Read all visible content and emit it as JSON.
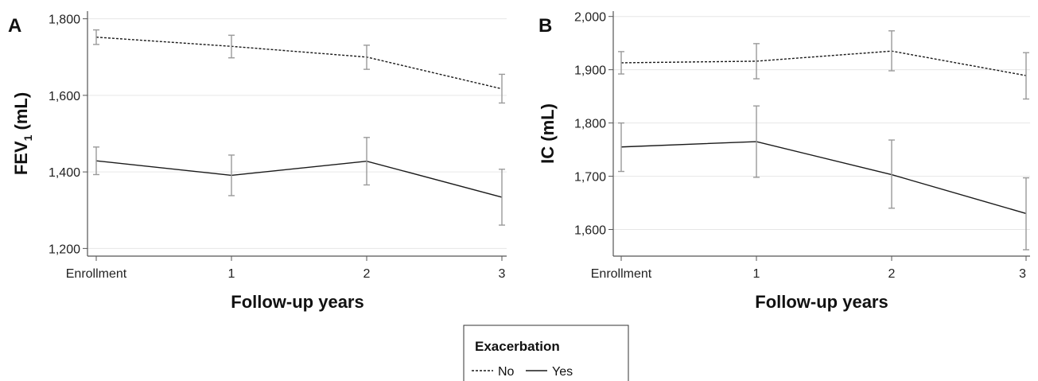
{
  "chart_data": [
    {
      "panel_label": "A",
      "type": "line",
      "x": [
        "Enrollment",
        "1",
        "2",
        "3"
      ],
      "xlabel": "Follow-up years",
      "ylabel_main": "FEV",
      "ylabel_sub": "1",
      "ylabel_unit": " (mL)",
      "ylim": [
        1180,
        1820
      ],
      "yticks": [
        1200,
        1400,
        1600,
        1800
      ],
      "ytick_labels": [
        "1,200",
        "1,400",
        "1,600",
        "1,800"
      ],
      "grid": true,
      "series": [
        {
          "name": "No",
          "dash": true,
          "values": [
            1752,
            1728,
            1700,
            1617
          ],
          "lower": [
            1733,
            1698,
            1668,
            1580
          ],
          "upper": [
            1771,
            1757,
            1731,
            1655
          ]
        },
        {
          "name": "Yes",
          "dash": false,
          "values": [
            1429,
            1391,
            1428,
            1334
          ],
          "lower": [
            1393,
            1338,
            1366,
            1261
          ],
          "upper": [
            1465,
            1444,
            1490,
            1407
          ]
        }
      ]
    },
    {
      "panel_label": "B",
      "type": "line",
      "x": [
        "Enrollment",
        "1",
        "2",
        "3"
      ],
      "xlabel": "Follow-up years",
      "ylabel_main": "IC (mL)",
      "ylabel_sub": "",
      "ylabel_unit": "",
      "ylim": [
        1550,
        2010
      ],
      "yticks": [
        1600,
        1700,
        1800,
        1900,
        2000
      ],
      "ytick_labels": [
        "1,600",
        "1,700",
        "1,800",
        "1,900",
        "2,000"
      ],
      "grid": true,
      "series": [
        {
          "name": "No",
          "dash": true,
          "values": [
            1913,
            1916,
            1935,
            1889
          ],
          "lower": [
            1892,
            1883,
            1898,
            1845
          ],
          "upper": [
            1934,
            1949,
            1973,
            1932
          ]
        },
        {
          "name": "Yes",
          "dash": false,
          "values": [
            1755,
            1765,
            1703,
            1630
          ],
          "lower": [
            1709,
            1698,
            1640,
            1562
          ],
          "upper": [
            1800,
            1832,
            1768,
            1697
          ]
        }
      ]
    }
  ],
  "legend": {
    "title": "Exacerbation",
    "items": [
      {
        "label": "No",
        "dash": true
      },
      {
        "label": "Yes",
        "dash": false
      }
    ],
    "placement": "bottom-center"
  }
}
